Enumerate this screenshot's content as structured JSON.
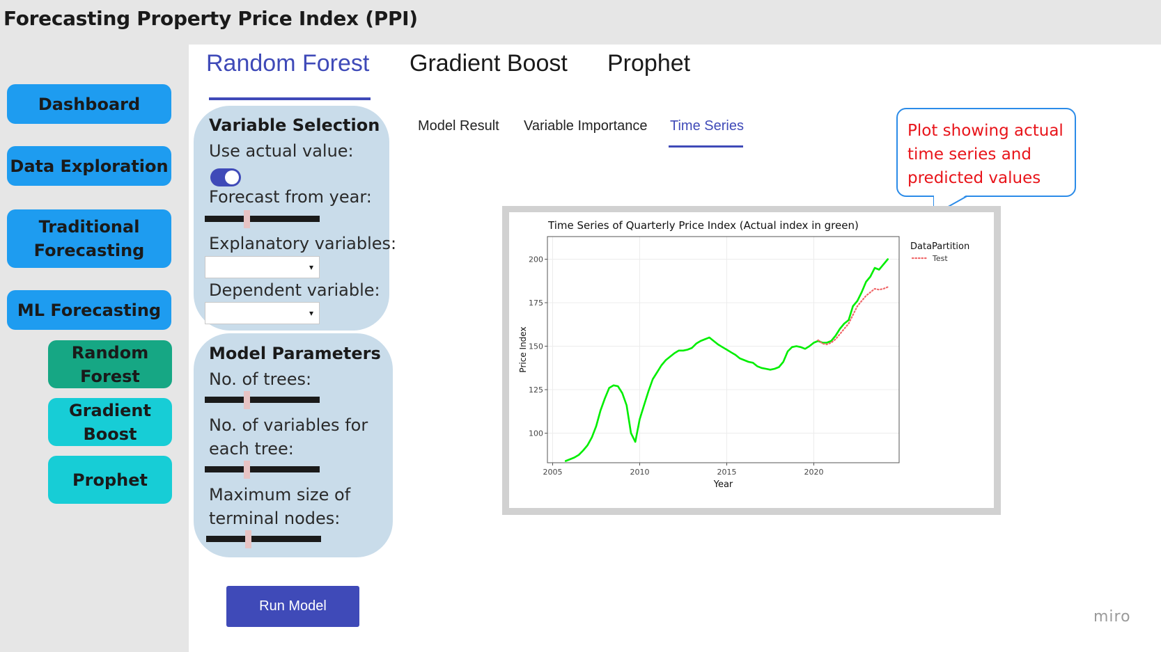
{
  "app": {
    "title": "Forecasting Property Price Index (PPI)"
  },
  "sidebar": {
    "items": [
      {
        "label": "Dashboard"
      },
      {
        "label": "Data Exploration"
      },
      {
        "label": "Traditional Forecasting"
      },
      {
        "label": "ML Forecasting"
      }
    ],
    "subitems": [
      {
        "label": "Random Forest",
        "active": true
      },
      {
        "label": "Gradient Boost",
        "active": false
      },
      {
        "label": "Prophet",
        "active": false
      }
    ]
  },
  "main_tabs": [
    {
      "label": "Random Forest",
      "active": true
    },
    {
      "label": "Gradient Boost",
      "active": false
    },
    {
      "label": "Prophet",
      "active": false
    }
  ],
  "variable_selection": {
    "title": "Variable Selection",
    "use_actual_label": "Use actual value:",
    "use_actual_on": true,
    "forecast_from_label": "Forecast from year:",
    "explanatory_label": "Explanatory variables:",
    "explanatory_value": "",
    "dependent_label": "Dependent variable:",
    "dependent_value": ""
  },
  "model_parameters": {
    "title": "Model Parameters",
    "trees_label": "No. of trees:",
    "vars_label": "No. of variables for each tree:",
    "nodes_label": "Maximum size of terminal nodes:"
  },
  "run_button": {
    "label": "Run Model"
  },
  "result_tabs": [
    {
      "label": "Model Result",
      "active": false
    },
    {
      "label": "Variable Importance",
      "active": false
    },
    {
      "label": "Time Series",
      "active": true
    }
  ],
  "callout": {
    "text": "Plot showing actual time series and predicted values"
  },
  "watermark": "miro",
  "colors": {
    "accent": "#3f4ab8",
    "nav": "#1e9cf0",
    "sub_nav": "#17cdd6",
    "sub_nav_active": "#16a784",
    "panel": "#c9dcea",
    "actual": "#00ee00",
    "test": "#f0686a"
  },
  "chart_data": {
    "type": "line",
    "title": "Time Series of Quarterly Price Index (Actual index in green)",
    "xlabel": "Year",
    "ylabel": "Price Index",
    "xlim": [
      2004.7,
      2024.9
    ],
    "ylim": [
      83,
      213
    ],
    "xticks": [
      2005,
      2010,
      2015,
      2020
    ],
    "yticks": [
      100,
      125,
      150,
      175,
      200
    ],
    "grid": true,
    "legend": {
      "title": "DataPartition",
      "position": "right",
      "entries": [
        {
          "name": "Test",
          "color": "#f0686a",
          "style": "dotted"
        }
      ]
    },
    "series": [
      {
        "color": "#00ee00",
        "style": "solid",
        "points": [
          [
            2005.75,
            84
          ],
          [
            2006.0,
            85
          ],
          [
            2006.25,
            86
          ],
          [
            2006.5,
            87.5
          ],
          [
            2006.75,
            90
          ],
          [
            2007.0,
            93
          ],
          [
            2007.25,
            97.5
          ],
          [
            2007.5,
            104
          ],
          [
            2007.75,
            113
          ],
          [
            2008.0,
            120
          ],
          [
            2008.25,
            126
          ],
          [
            2008.5,
            127.5
          ],
          [
            2008.75,
            127
          ],
          [
            2009.0,
            123
          ],
          [
            2009.25,
            116
          ],
          [
            2009.5,
            100
          ],
          [
            2009.75,
            95
          ],
          [
            2010.0,
            108
          ],
          [
            2010.25,
            116
          ],
          [
            2010.5,
            124
          ],
          [
            2010.75,
            131
          ],
          [
            2011.0,
            135
          ],
          [
            2011.25,
            139
          ],
          [
            2011.5,
            142
          ],
          [
            2011.75,
            144
          ],
          [
            2012.0,
            146
          ],
          [
            2012.25,
            147.5
          ],
          [
            2012.5,
            147.5
          ],
          [
            2012.75,
            148
          ],
          [
            2013.0,
            149
          ],
          [
            2013.25,
            151.5
          ],
          [
            2013.5,
            153
          ],
          [
            2013.75,
            154
          ],
          [
            2014.0,
            155
          ],
          [
            2014.25,
            153
          ],
          [
            2014.5,
            151
          ],
          [
            2014.75,
            149.5
          ],
          [
            2015.0,
            148
          ],
          [
            2015.25,
            146.5
          ],
          [
            2015.5,
            145
          ],
          [
            2015.75,
            143
          ],
          [
            2016.0,
            142
          ],
          [
            2016.25,
            141
          ],
          [
            2016.5,
            140.5
          ],
          [
            2016.75,
            138.5
          ],
          [
            2017.0,
            137.5
          ],
          [
            2017.25,
            137
          ],
          [
            2017.5,
            136.5
          ],
          [
            2017.75,
            137
          ],
          [
            2018.0,
            138
          ],
          [
            2018.25,
            141
          ],
          [
            2018.5,
            147
          ],
          [
            2018.75,
            149.5
          ],
          [
            2019.0,
            150
          ],
          [
            2019.25,
            149.5
          ],
          [
            2019.5,
            148.5
          ],
          [
            2019.75,
            150
          ],
          [
            2020.0,
            152
          ],
          [
            2020.25,
            153
          ],
          [
            2020.5,
            152
          ],
          [
            2020.75,
            152
          ],
          [
            2021.0,
            153
          ],
          [
            2021.25,
            156
          ],
          [
            2021.5,
            160
          ],
          [
            2021.75,
            163
          ],
          [
            2022.0,
            165
          ],
          [
            2022.25,
            173
          ],
          [
            2022.5,
            176
          ],
          [
            2022.75,
            181
          ],
          [
            2023.0,
            187
          ],
          [
            2023.25,
            190
          ],
          [
            2023.5,
            195
          ],
          [
            2023.75,
            194
          ],
          [
            2024.0,
            197
          ],
          [
            2024.25,
            200
          ]
        ]
      },
      {
        "name": "Test",
        "color": "#f0686a",
        "style": "dotted",
        "points": [
          [
            2020.25,
            153.5
          ],
          [
            2020.5,
            151.5
          ],
          [
            2020.75,
            151
          ],
          [
            2021.0,
            152
          ],
          [
            2021.25,
            154
          ],
          [
            2021.5,
            157
          ],
          [
            2021.75,
            160
          ],
          [
            2022.0,
            163
          ],
          [
            2022.25,
            168
          ],
          [
            2022.5,
            173
          ],
          [
            2022.75,
            176
          ],
          [
            2023.0,
            179
          ],
          [
            2023.25,
            181
          ],
          [
            2023.5,
            183
          ],
          [
            2023.75,
            182.5
          ],
          [
            2024.0,
            183
          ],
          [
            2024.25,
            184
          ]
        ]
      }
    ]
  }
}
